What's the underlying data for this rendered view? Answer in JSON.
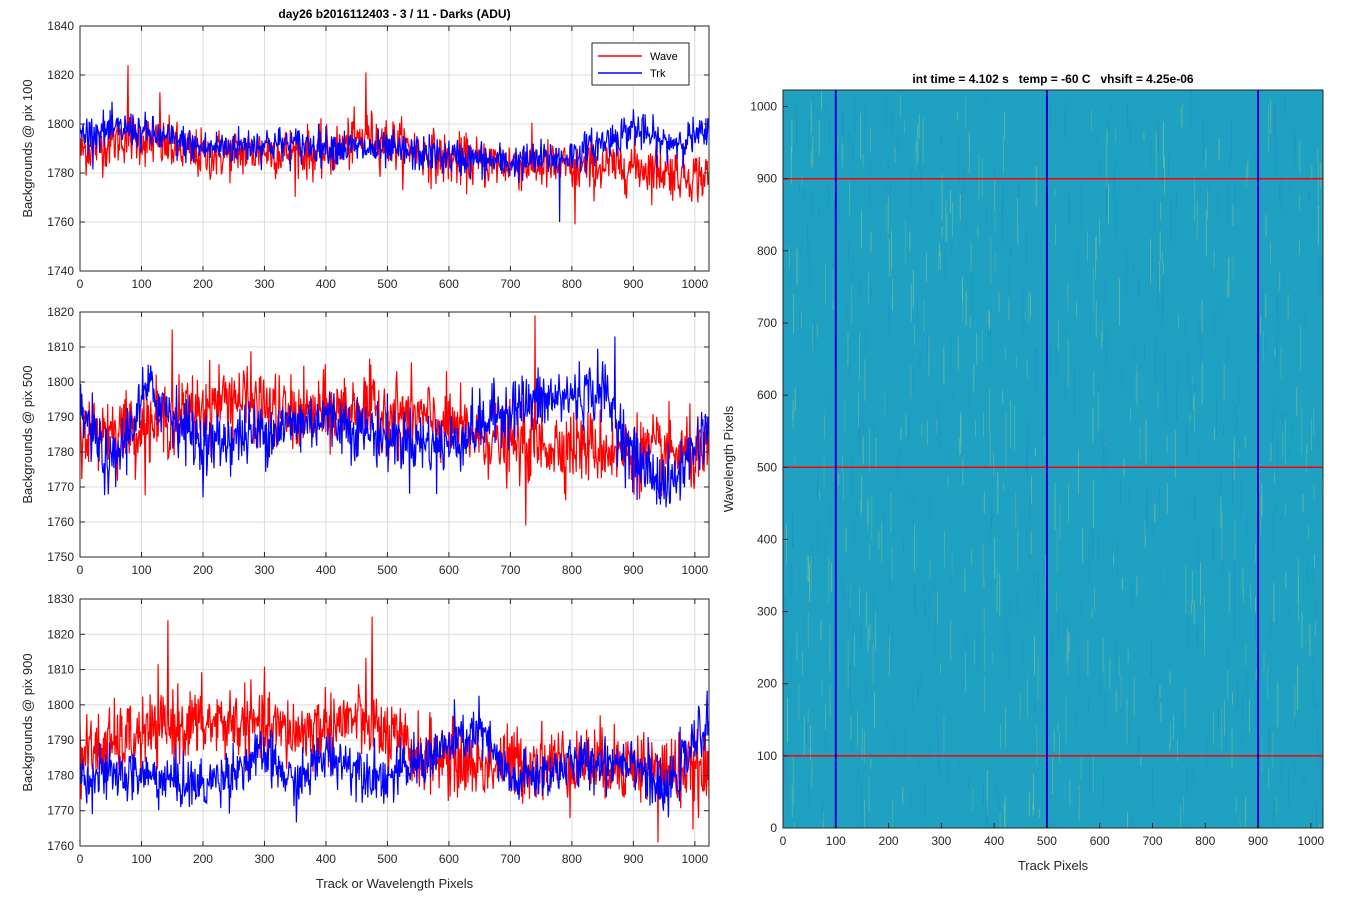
{
  "figure_title": "day26 b2016112403 - 3 / 11 - Darks (ADU)",
  "chart_data": [
    {
      "type": "line",
      "id": "pix100",
      "title": "day26 b2016112403 - 3 / 11 - Darks (ADU)",
      "ylabel": "Backgrounds @ pix 100",
      "xlabel": "",
      "xlim": [
        0,
        1023
      ],
      "ylim": [
        1740,
        1840
      ],
      "xticks": [
        0,
        100,
        200,
        300,
        400,
        500,
        600,
        700,
        800,
        900,
        1000
      ],
      "yticks": [
        1740,
        1760,
        1780,
        1800,
        1820,
        1840
      ],
      "grid": true,
      "legend": {
        "placement": "top-right",
        "entries": [
          "Wave",
          "Trk"
        ]
      },
      "series": [
        {
          "name": "Wave",
          "color": "#ff0000",
          "mean": 1787,
          "noise": 7,
          "anchors": [
            [
              0,
              1789
            ],
            [
              80,
              1795
            ],
            [
              200,
              1787
            ],
            [
              300,
              1789
            ],
            [
              400,
              1788
            ],
            [
              470,
              1795
            ],
            [
              600,
              1785
            ],
            [
              700,
              1784
            ],
            [
              800,
              1782
            ],
            [
              900,
              1783
            ],
            [
              1023,
              1778
            ]
          ],
          "spikes": [
            [
              78,
              1824
            ],
            [
              465,
              1821
            ],
            [
              130,
              1813
            ],
            [
              805,
              1759
            ]
          ]
        },
        {
          "name": "Trk",
          "color": "#0000ff",
          "mean": 1790,
          "noise": 5,
          "anchors": [
            [
              0,
              1796
            ],
            [
              80,
              1798
            ],
            [
              200,
              1790
            ],
            [
              300,
              1792
            ],
            [
              400,
              1791
            ],
            [
              550,
              1788
            ],
            [
              700,
              1784
            ],
            [
              800,
              1787
            ],
            [
              900,
              1798
            ],
            [
              950,
              1792
            ],
            [
              1023,
              1796
            ]
          ],
          "spikes": [
            [
              780,
              1760
            ],
            [
              900,
              1806
            ]
          ]
        }
      ]
    },
    {
      "type": "line",
      "id": "pix500",
      "ylabel": "Backgrounds @ pix 500",
      "xlabel": "",
      "xlim": [
        0,
        1023
      ],
      "ylim": [
        1750,
        1820
      ],
      "xticks": [
        0,
        100,
        200,
        300,
        400,
        500,
        600,
        700,
        800,
        900,
        1000
      ],
      "yticks": [
        1750,
        1760,
        1770,
        1780,
        1790,
        1800,
        1810,
        1820
      ],
      "grid": true,
      "series": [
        {
          "name": "Wave",
          "color": "#ff0000",
          "mean": 1788,
          "noise": 7,
          "anchors": [
            [
              0,
              1786
            ],
            [
              100,
              1787
            ],
            [
              150,
              1790
            ],
            [
              250,
              1796
            ],
            [
              350,
              1790
            ],
            [
              450,
              1793
            ],
            [
              550,
              1790
            ],
            [
              700,
              1782
            ],
            [
              800,
              1782
            ],
            [
              900,
              1780
            ],
            [
              1023,
              1779
            ]
          ],
          "spikes": [
            [
              150,
              1815
            ],
            [
              740,
              1819
            ],
            [
              725,
              1759
            ]
          ]
        },
        {
          "name": "Trk",
          "color": "#0000ff",
          "mean": 1786,
          "noise": 6,
          "anchors": [
            [
              0,
              1792
            ],
            [
              50,
              1775
            ],
            [
              110,
              1798
            ],
            [
              200,
              1782
            ],
            [
              300,
              1786
            ],
            [
              400,
              1790
            ],
            [
              500,
              1784
            ],
            [
              600,
              1782
            ],
            [
              700,
              1793
            ],
            [
              800,
              1796
            ],
            [
              850,
              1798
            ],
            [
              900,
              1778
            ],
            [
              960,
              1770
            ],
            [
              1023,
              1788
            ]
          ],
          "spikes": [
            [
              870,
              1813
            ],
            [
              580,
              1768
            ]
          ]
        }
      ]
    },
    {
      "type": "line",
      "id": "pix900",
      "ylabel": "Backgrounds @ pix 900",
      "xlabel": "Track or Wavelength Pixels",
      "xlim": [
        0,
        1023
      ],
      "ylim": [
        1760,
        1830
      ],
      "xticks": [
        0,
        100,
        200,
        300,
        400,
        500,
        600,
        700,
        800,
        900,
        1000
      ],
      "yticks": [
        1760,
        1770,
        1780,
        1790,
        1800,
        1810,
        1820,
        1830
      ],
      "grid": true,
      "series": [
        {
          "name": "Wave",
          "color": "#ff0000",
          "mean": 1790,
          "noise": 7,
          "anchors": [
            [
              0,
              1786
            ],
            [
              150,
              1794
            ],
            [
              250,
              1795
            ],
            [
              350,
              1792
            ],
            [
              450,
              1796
            ],
            [
              550,
              1786
            ],
            [
              650,
              1783
            ],
            [
              800,
              1784
            ],
            [
              900,
              1783
            ],
            [
              1023,
              1780
            ]
          ],
          "spikes": [
            [
              143,
              1824
            ],
            [
              475,
              1825
            ],
            [
              940,
              1761
            ]
          ]
        },
        {
          "name": "Trk",
          "color": "#0000ff",
          "mean": 1781,
          "noise": 5,
          "anchors": [
            [
              0,
              1780
            ],
            [
              100,
              1780
            ],
            [
              200,
              1777
            ],
            [
              300,
              1786
            ],
            [
              350,
              1777
            ],
            [
              400,
              1786
            ],
            [
              500,
              1779
            ],
            [
              650,
              1793
            ],
            [
              700,
              1778
            ],
            [
              800,
              1783
            ],
            [
              900,
              1785
            ],
            [
              950,
              1774
            ],
            [
              1023,
              1796
            ]
          ],
          "spikes": [
            [
              1020,
              1804
            ]
          ]
        }
      ]
    },
    {
      "type": "heatmap",
      "id": "image",
      "title": "int time = 4.102 s   temp = -60 C   vhsift = 4.25e-06",
      "xlabel": "Track Pixels",
      "ylabel": "Wavelength Pixels",
      "xlim": [
        0,
        1023
      ],
      "ylim": [
        0,
        1023
      ],
      "xticks": [
        0,
        100,
        200,
        300,
        400,
        500,
        600,
        700,
        800,
        900,
        1000
      ],
      "yticks": [
        0,
        100,
        200,
        300,
        400,
        500,
        600,
        700,
        800,
        900,
        1000
      ],
      "colormap": "parula",
      "base_color": "#1fa2c2",
      "hot_color": "#8fc58a",
      "cool_color": "#1d88c9",
      "vertical_lines": {
        "color": "#0000cd",
        "values": [
          100,
          500,
          900
        ]
      },
      "horizontal_lines": {
        "color": "#ff0000",
        "values": [
          100,
          500,
          900
        ]
      }
    }
  ]
}
